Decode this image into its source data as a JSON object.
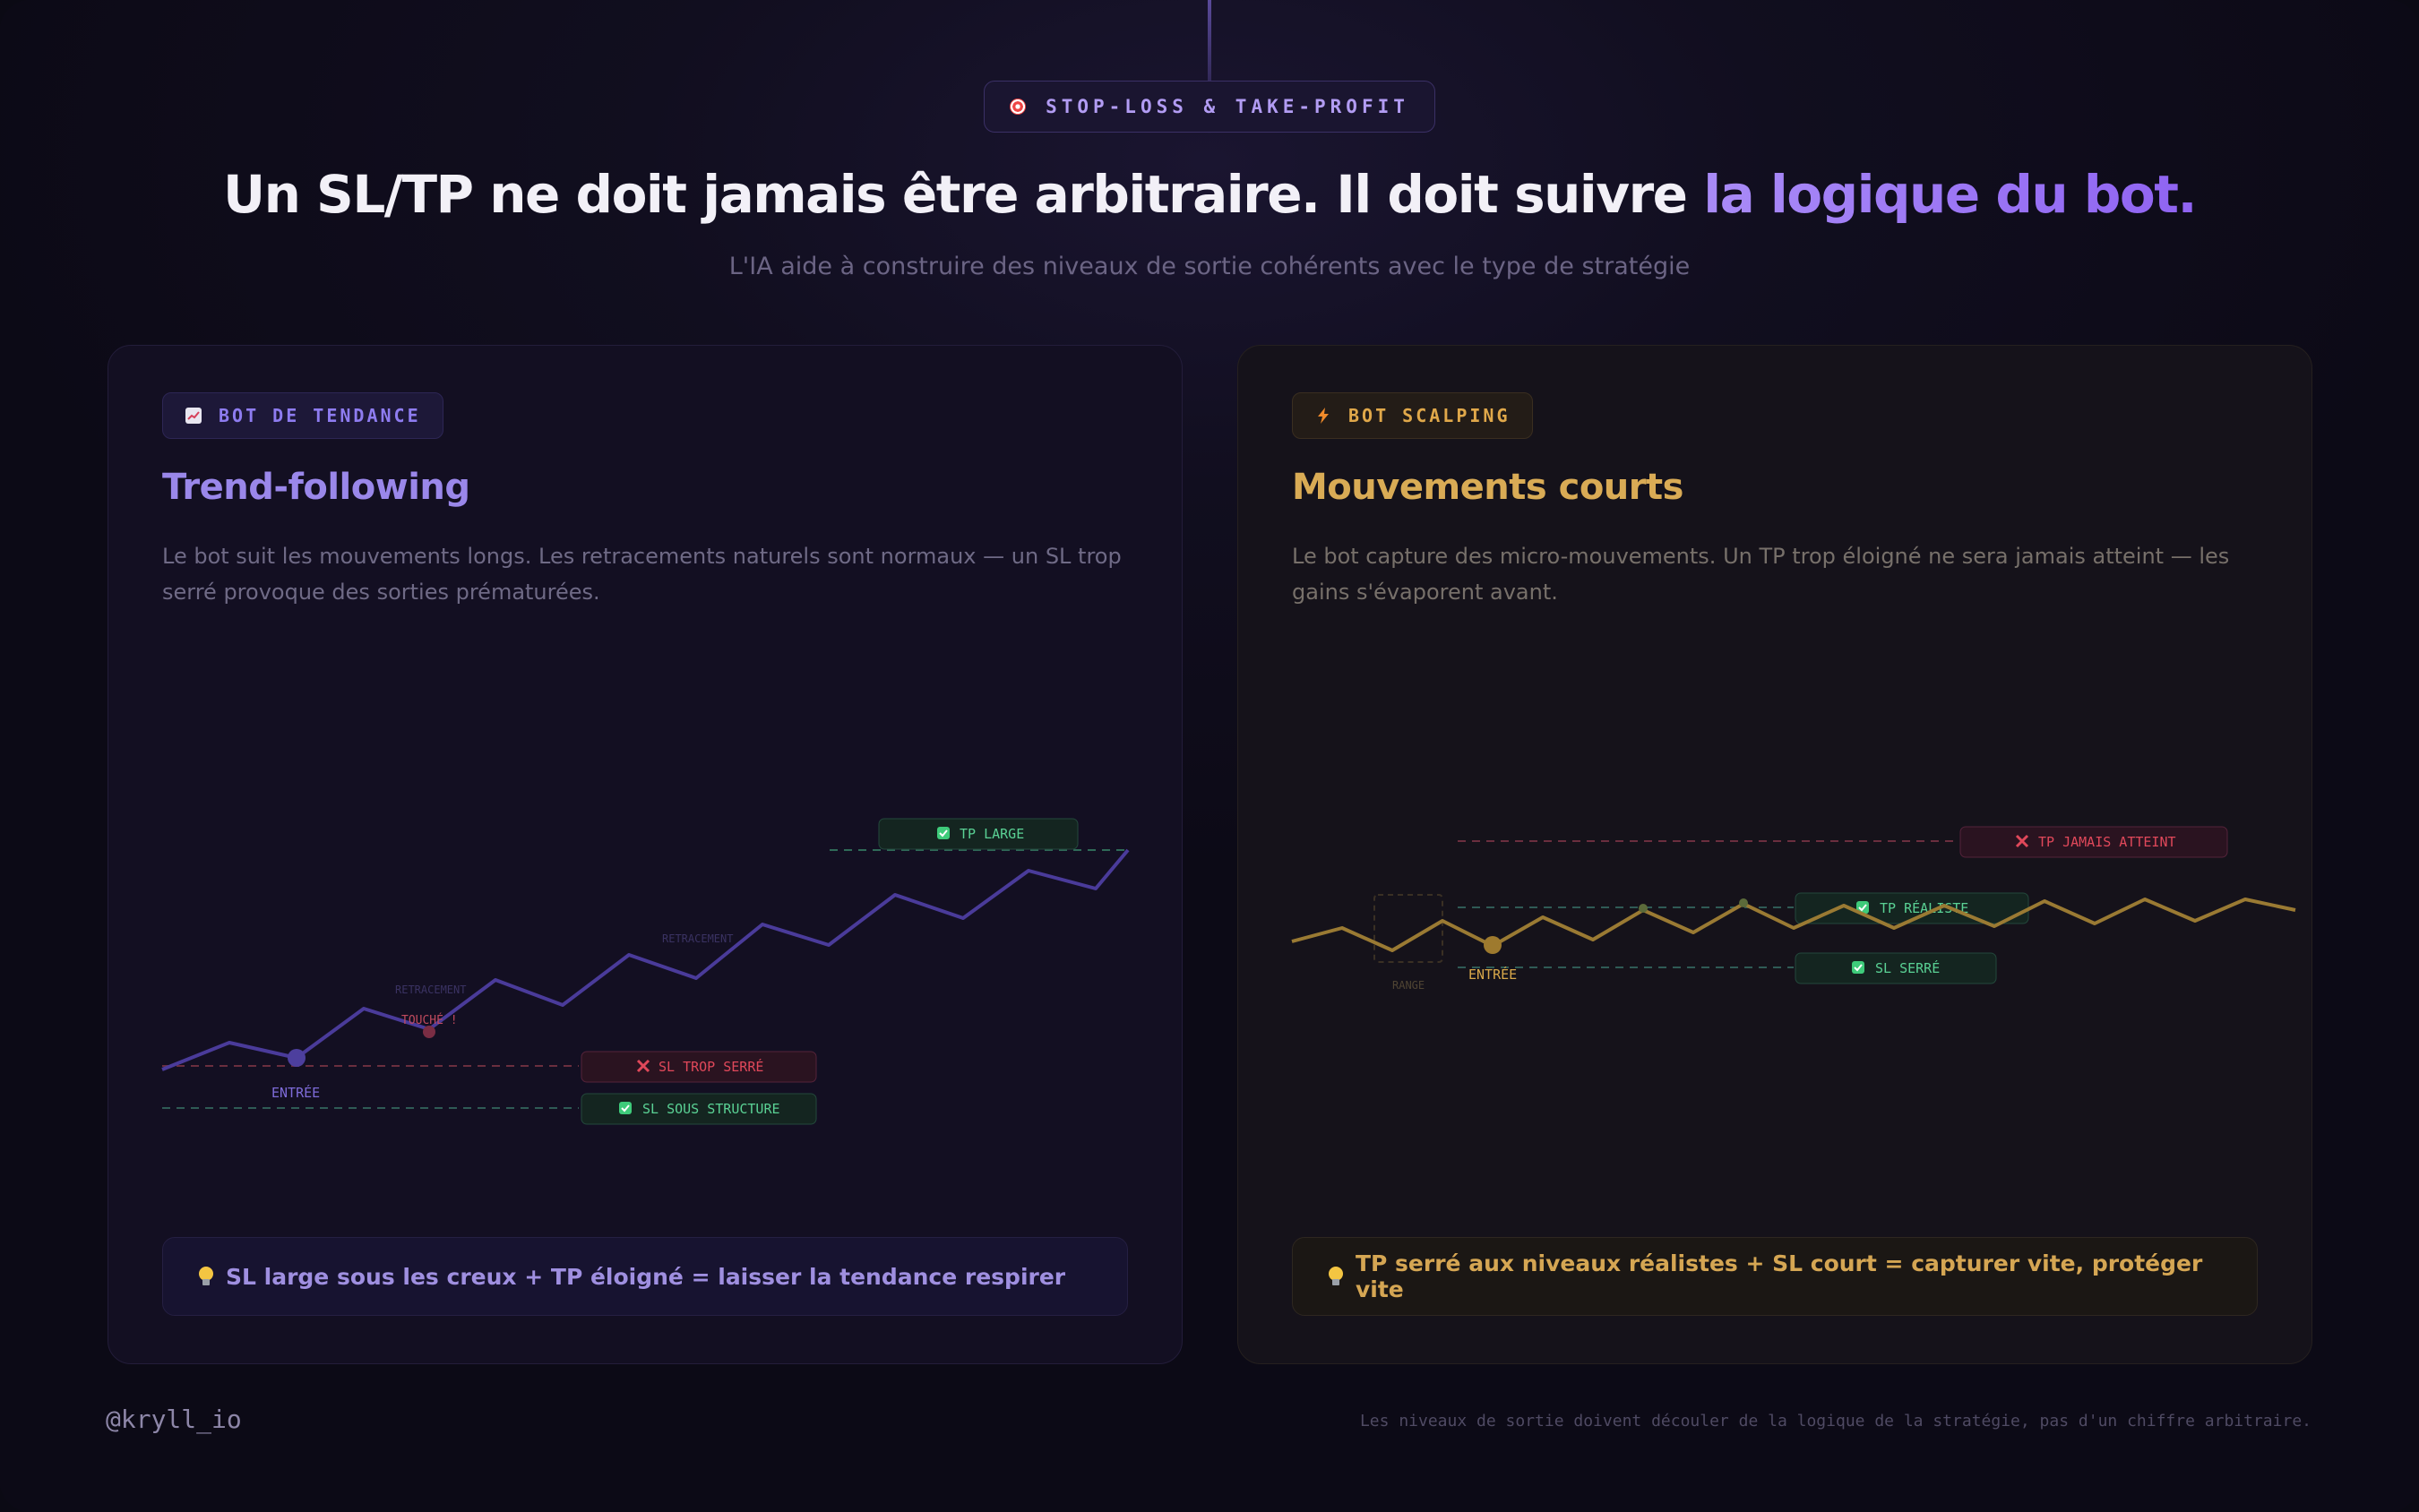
{
  "header": {
    "pill_label": "STOP-LOSS & TAKE-PROFIT",
    "title_main": "Un SL/TP ne doit jamais être arbitraire. Il doit suivre ",
    "title_accent": "la logique du bot.",
    "subtitle": "L'IA aide à construire des niveaux de sortie cohérents avec le type de stratégie"
  },
  "cards": {
    "trend": {
      "tag": "BOT DE TENDANCE",
      "title": "Trend-following",
      "description": "Le bot suit les mouvements longs. Les retracements naturels sont normaux — un SL trop serré provoque des sorties prématurées.",
      "tip": "SL large sous les creux + TP éloigné = laisser la tendance respirer",
      "accent": "#8e7cf0",
      "labels": {
        "tp": "TP LARGE",
        "sl_bad": "SL TROP SERRÉ",
        "sl_good": "SL SOUS STRUCTURE",
        "entry": "ENTRÉE",
        "retracement_1": "RETRACEMENT",
        "retracement_2": "RETRACEMENT",
        "touched": "TOUCHÉ !"
      }
    },
    "scalping": {
      "tag": "BOT SCALPING",
      "title": "Mouvements courts",
      "description": "Le bot capture des micro-mouvements. Un TP trop éloigné ne sera jamais atteint — les gains s'évaporent avant.",
      "tip": "TP serré aux niveaux réalistes + SL court = capturer vite, protéger vite",
      "accent": "#d9ab55",
      "labels": {
        "tp_bad": "TP JAMAIS ATTEINT",
        "tp_good": "TP RÉALISTE",
        "sl": "SL SERRÉ",
        "entry": "ENTRÉE",
        "range": "RANGE"
      }
    }
  },
  "footer": {
    "brand": "@kryll_io",
    "note": "Les niveaux de sortie doivent découler de la logique de la stratégie, pas d'un chiffre arbitraire."
  },
  "colors": {
    "danger": "#e0485a",
    "success": "#4fc98a",
    "trend_line": "#4a3b9a",
    "scalp_line": "#9a7a33"
  }
}
